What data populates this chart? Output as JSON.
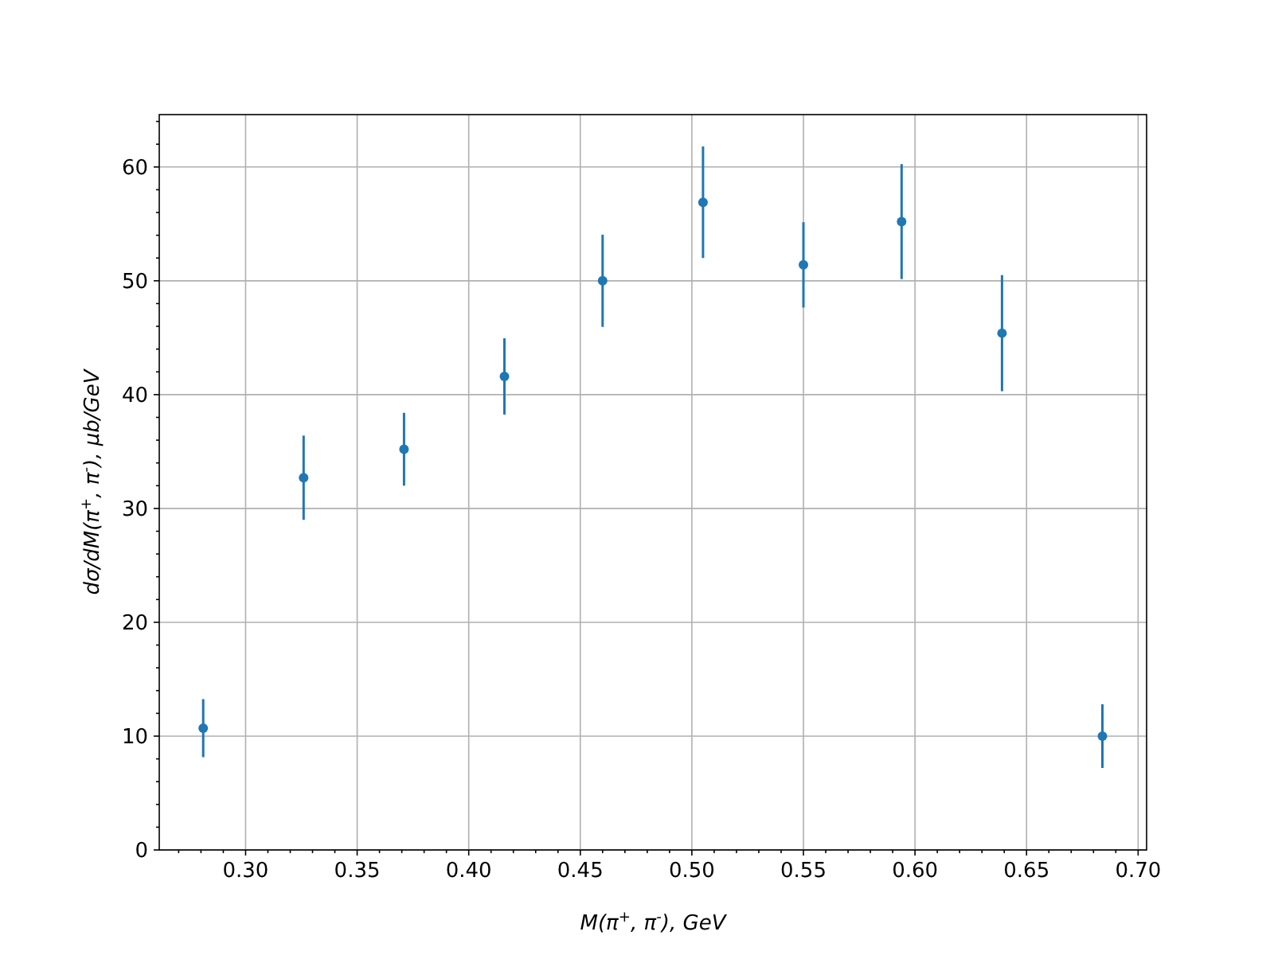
{
  "chart_data": {
    "type": "scatter",
    "xlabel": "M(π$^{+}$, π$^{-}$), GeV",
    "ylabel": "dσ/dM(π$^{+}$, π$^{-}$), μb/GeV",
    "x": [
      0.281,
      0.326,
      0.371,
      0.416,
      0.46,
      0.505,
      0.55,
      0.594,
      0.639,
      0.684
    ],
    "series": [
      {
        "color": "#1f77b4",
        "values": [
          10.7,
          32.7,
          35.2,
          41.6,
          50.0,
          56.9,
          51.4,
          55.2,
          45.4,
          10.0
        ],
        "errors": [
          2.55,
          3.7,
          3.2,
          3.35,
          4.05,
          4.9,
          3.75,
          5.05,
          5.1,
          2.8
        ]
      }
    ],
    "xlim": [
      0.2613,
      0.7038
    ],
    "ylim": [
      0,
      64.6
    ],
    "xticks": [
      {
        "value": 0.27,
        "label": null
      },
      {
        "value": 0.28,
        "label": null
      },
      {
        "value": 0.29,
        "label": null
      },
      {
        "value": 0.3,
        "label": "0.30"
      },
      {
        "value": 0.31,
        "label": null
      },
      {
        "value": 0.32,
        "label": null
      },
      {
        "value": 0.33,
        "label": null
      },
      {
        "value": 0.34,
        "label": null
      },
      {
        "value": 0.35,
        "label": "0.35"
      },
      {
        "value": 0.36,
        "label": null
      },
      {
        "value": 0.37,
        "label": null
      },
      {
        "value": 0.38,
        "label": null
      },
      {
        "value": 0.39,
        "label": null
      },
      {
        "value": 0.4,
        "label": "0.40"
      },
      {
        "value": 0.41,
        "label": null
      },
      {
        "value": 0.42,
        "label": null
      },
      {
        "value": 0.43,
        "label": null
      },
      {
        "value": 0.44,
        "label": null
      },
      {
        "value": 0.45,
        "label": "0.45"
      },
      {
        "value": 0.46,
        "label": null
      },
      {
        "value": 0.47,
        "label": null
      },
      {
        "value": 0.48,
        "label": null
      },
      {
        "value": 0.49,
        "label": null
      },
      {
        "value": 0.5,
        "label": "0.50"
      },
      {
        "value": 0.51,
        "label": null
      },
      {
        "value": 0.52,
        "label": null
      },
      {
        "value": 0.53,
        "label": null
      },
      {
        "value": 0.54,
        "label": null
      },
      {
        "value": 0.55,
        "label": "0.55"
      },
      {
        "value": 0.56,
        "label": null
      },
      {
        "value": 0.57,
        "label": null
      },
      {
        "value": 0.58,
        "label": null
      },
      {
        "value": 0.59,
        "label": null
      },
      {
        "value": 0.6,
        "label": "0.60"
      },
      {
        "value": 0.61,
        "label": null
      },
      {
        "value": 0.62,
        "label": null
      },
      {
        "value": 0.63,
        "label": null
      },
      {
        "value": 0.64,
        "label": null
      },
      {
        "value": 0.65,
        "label": "0.65"
      },
      {
        "value": 0.66,
        "label": null
      },
      {
        "value": 0.67,
        "label": null
      },
      {
        "value": 0.68,
        "label": null
      },
      {
        "value": 0.69,
        "label": null
      },
      {
        "value": 0.7,
        "label": "0.70"
      }
    ],
    "yticks": [
      0,
      {
        "value": 2,
        "label": null
      },
      {
        "value": 4,
        "label": null
      },
      {
        "value": 6,
        "label": null
      },
      {
        "value": 8,
        "label": null
      },
      10,
      {
        "value": 12,
        "label": null
      },
      {
        "value": 14,
        "label": null
      },
      {
        "value": 16,
        "label": null
      },
      {
        "value": 18,
        "label": null
      },
      20,
      {
        "value": 22,
        "label": null
      },
      {
        "value": 24,
        "label": null
      },
      {
        "value": 26,
        "label": null
      },
      {
        "value": 28,
        "label": null
      },
      30,
      {
        "value": 32,
        "label": null
      },
      {
        "value": 34,
        "label": null
      },
      {
        "value": 36,
        "label": null
      },
      {
        "value": 38,
        "label": null
      },
      40,
      {
        "value": 42,
        "label": null
      },
      {
        "value": 44,
        "label": null
      },
      {
        "value": 46,
        "label": null
      },
      {
        "value": 48,
        "label": null
      },
      50,
      {
        "value": 52,
        "label": null
      },
      {
        "value": 54,
        "label": null
      },
      {
        "value": 56,
        "label": null
      },
      {
        "value": 58,
        "label": null
      },
      60,
      {
        "value": 62,
        "label": null
      },
      {
        "value": 64,
        "label": null
      }
    ],
    "grid": true,
    "marker": "circle"
  }
}
